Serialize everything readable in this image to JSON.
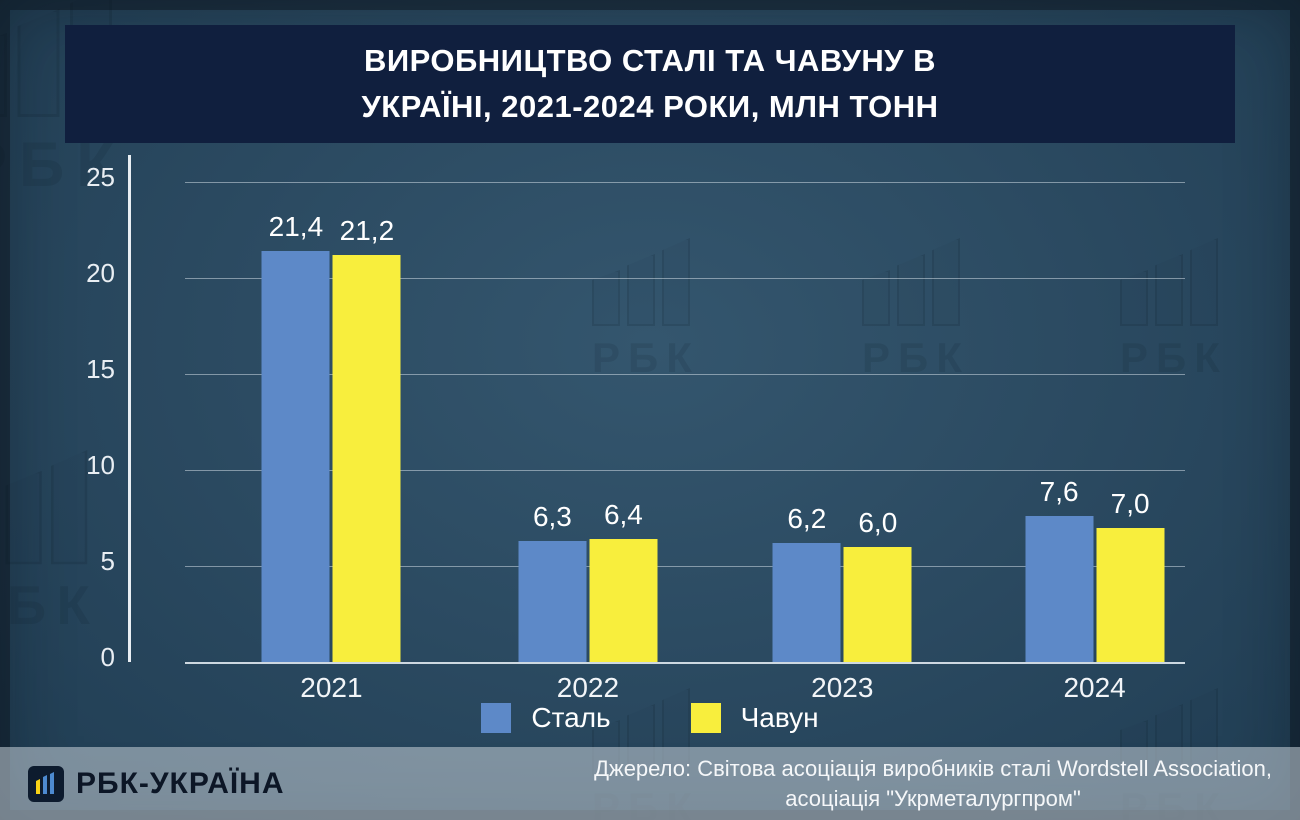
{
  "title": {
    "line1": "ВИРОБНИЦТВО СТАЛІ ТА ЧАВУНУ В",
    "line2": "УКРАЇНІ, 2021-2024 РОКИ, МЛН ТОНН"
  },
  "chart_data": {
    "type": "bar",
    "categories": [
      "2021",
      "2022",
      "2023",
      "2024"
    ],
    "series": [
      {
        "name": "Сталь",
        "color": "#5d89c8",
        "values": [
          21.4,
          6.3,
          6.2,
          7.6
        ],
        "labels": [
          "21,4",
          "6,3",
          "6,2",
          "7,6"
        ]
      },
      {
        "name": "Чавун",
        "color": "#f8ee3d",
        "values": [
          21.2,
          6.4,
          6.0,
          7.0
        ],
        "labels": [
          "21,2",
          "6,4",
          "6,0",
          "7,0"
        ]
      }
    ],
    "title": "ВИРОБНИЦТВО СТАЛІ ТА ЧАВУНУ В УКРАЇНІ, 2021-2024 РОКИ, МЛН ТОНН",
    "xlabel": "",
    "ylabel": "",
    "ylim": [
      0,
      25
    ],
    "yticks": [
      0,
      5,
      10,
      15,
      20,
      25
    ],
    "grid": true,
    "legend_position": "bottom"
  },
  "footer": {
    "brand": "РБК-УКРАЇНА",
    "source_line1": "Джерело: Світова асоціація виробників сталі Wordstell Association,",
    "source_line2": "асоціація \"Укрметалургпром\""
  },
  "watermark": {
    "text": "РБК"
  }
}
